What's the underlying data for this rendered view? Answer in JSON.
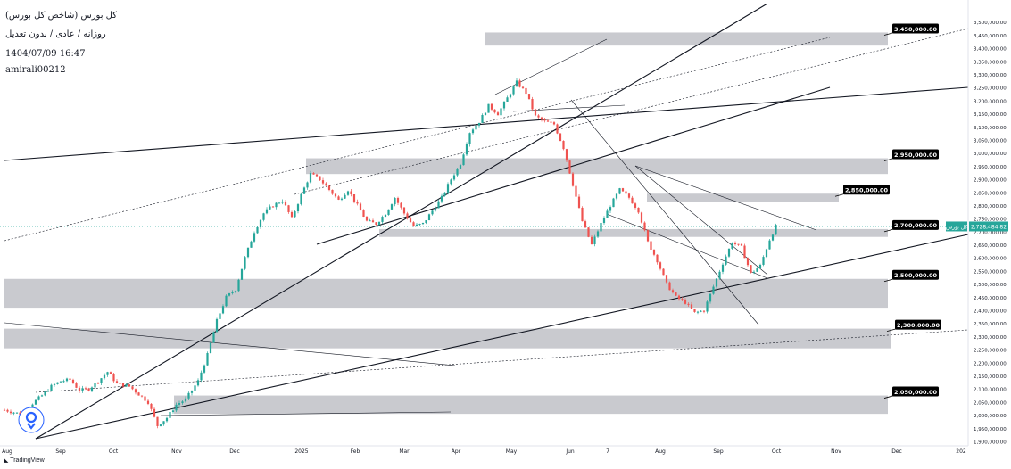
{
  "header": {
    "title": "کل بورس (شاخص کل بورس)",
    "timeframe": "روزانه / عادی / بدون تعدیل",
    "datetime": "1404/07/09 16:47",
    "author": "amirali00212"
  },
  "footer": {
    "brand": "TradingView"
  },
  "colors": {
    "up": "#26a69a",
    "down": "#ef5350",
    "zone": "#c9cacf",
    "trendline": "#131722",
    "price_line": "#26a69a",
    "label_bg": "#000000"
  },
  "icons": {
    "logo": "tradingview-logo-icon",
    "marker": "location-pin-icon"
  },
  "chart_data": {
    "type": "candlestick",
    "title": "کل بورس (شاخص کل بورس)",
    "x_ticks": [
      "Aug",
      "Sep",
      "Oct",
      "Nov",
      "Dec",
      "2025",
      "Feb",
      "Mar",
      "Apr",
      "May",
      "Jun",
      "7",
      "Aug",
      "Sep",
      "Oct",
      "Nov",
      "Dec",
      "202"
    ],
    "y_ticks": [
      "3,500,000.00",
      "3,450,000.00",
      "3,400,000.00",
      "3,350,000.00",
      "3,300,000.00",
      "3,250,000.00",
      "3,200,000.00",
      "3,150,000.00",
      "3,100,000.00",
      "3,050,000.00",
      "3,000,000.00",
      "2,950,000.00",
      "2,900,000.00",
      "2,850,000.00",
      "2,800,000.00",
      "2,750,000.00",
      "2,700,000.00",
      "2,650,000.00",
      "2,600,000.00",
      "2,550,000.00",
      "2,500,000.00",
      "2,450,000.00",
      "2,400,000.00",
      "2,350,000.00",
      "2,300,000.00",
      "2,250,000.00",
      "2,200,000.00",
      "2,150,000.00",
      "2,100,000.00",
      "2,050,000.00",
      "2,000,000.00",
      "1,950,000.00",
      "1,900,000.00"
    ],
    "ylim": [
      1900000,
      3550000
    ],
    "last_price": {
      "value": 2720000,
      "label": "2,728,484.82",
      "series_name": "کل بورس"
    },
    "close_path": [
      [
        0,
        2020000
      ],
      [
        5,
        2005000
      ],
      [
        9,
        2045000
      ],
      [
        12,
        2075000
      ],
      [
        15,
        2110000
      ],
      [
        18,
        2130000
      ],
      [
        21,
        2135000
      ],
      [
        24,
        2095000
      ],
      [
        27,
        2100000
      ],
      [
        30,
        2130000
      ],
      [
        33,
        2165000
      ],
      [
        36,
        2120000
      ],
      [
        40,
        2110000
      ],
      [
        43,
        2080000
      ],
      [
        46,
        2050000
      ],
      [
        49,
        1960000
      ],
      [
        52,
        1990000
      ],
      [
        55,
        2040000
      ],
      [
        58,
        2060000
      ],
      [
        62,
        2130000
      ],
      [
        65,
        2230000
      ],
      [
        68,
        2360000
      ],
      [
        71,
        2450000
      ],
      [
        74,
        2480000
      ],
      [
        77,
        2600000
      ],
      [
        80,
        2700000
      ],
      [
        83,
        2770000
      ],
      [
        86,
        2800000
      ],
      [
        89,
        2820000
      ],
      [
        92,
        2750000
      ],
      [
        95,
        2840000
      ],
      [
        98,
        2920000
      ],
      [
        101,
        2900000
      ],
      [
        104,
        2860000
      ],
      [
        107,
        2820000
      ],
      [
        110,
        2860000
      ],
      [
        113,
        2800000
      ],
      [
        116,
        2740000
      ],
      [
        119,
        2730000
      ],
      [
        122,
        2770000
      ],
      [
        125,
        2830000
      ],
      [
        128,
        2770000
      ],
      [
        131,
        2720000
      ],
      [
        134,
        2730000
      ],
      [
        137,
        2780000
      ],
      [
        140,
        2830000
      ],
      [
        143,
        2900000
      ],
      [
        146,
        2960000
      ],
      [
        149,
        3080000
      ],
      [
        152,
        3120000
      ],
      [
        155,
        3180000
      ],
      [
        158,
        3150000
      ],
      [
        161,
        3210000
      ],
      [
        164,
        3270000
      ],
      [
        167,
        3230000
      ],
      [
        170,
        3140000
      ],
      [
        173,
        3120000
      ],
      [
        176,
        3110000
      ],
      [
        179,
        3020000
      ],
      [
        182,
        2880000
      ],
      [
        185,
        2740000
      ],
      [
        188,
        2650000
      ],
      [
        191,
        2730000
      ],
      [
        194,
        2800000
      ],
      [
        197,
        2860000
      ],
      [
        200,
        2830000
      ],
      [
        203,
        2780000
      ],
      [
        206,
        2660000
      ],
      [
        209,
        2590000
      ],
      [
        212,
        2500000
      ],
      [
        215,
        2450000
      ],
      [
        218,
        2430000
      ],
      [
        221,
        2390000
      ],
      [
        224,
        2400000
      ],
      [
        227,
        2490000
      ],
      [
        230,
        2580000
      ],
      [
        233,
        2660000
      ],
      [
        236,
        2640000
      ],
      [
        239,
        2540000
      ],
      [
        242,
        2570000
      ],
      [
        245,
        2670000
      ],
      [
        247,
        2720000
      ]
    ],
    "zones": [
      {
        "low": 3410000,
        "high": 3460000,
        "label": "3,450,000.00"
      },
      {
        "low": 2920000,
        "high": 2980000,
        "label": "2,950,000.00"
      },
      {
        "low": 2815000,
        "high": 2845000,
        "label": "2,850,000.00"
      },
      {
        "low": 2680000,
        "high": 2710000,
        "label": "2,700,000.00"
      },
      {
        "low": 2410000,
        "high": 2520000,
        "label": "2,500,000.00"
      },
      {
        "low": 2255000,
        "high": 2330000,
        "label": "2,300,000.00"
      },
      {
        "low": 2005000,
        "high": 2075000,
        "label": "2,050,000.00"
      }
    ]
  }
}
